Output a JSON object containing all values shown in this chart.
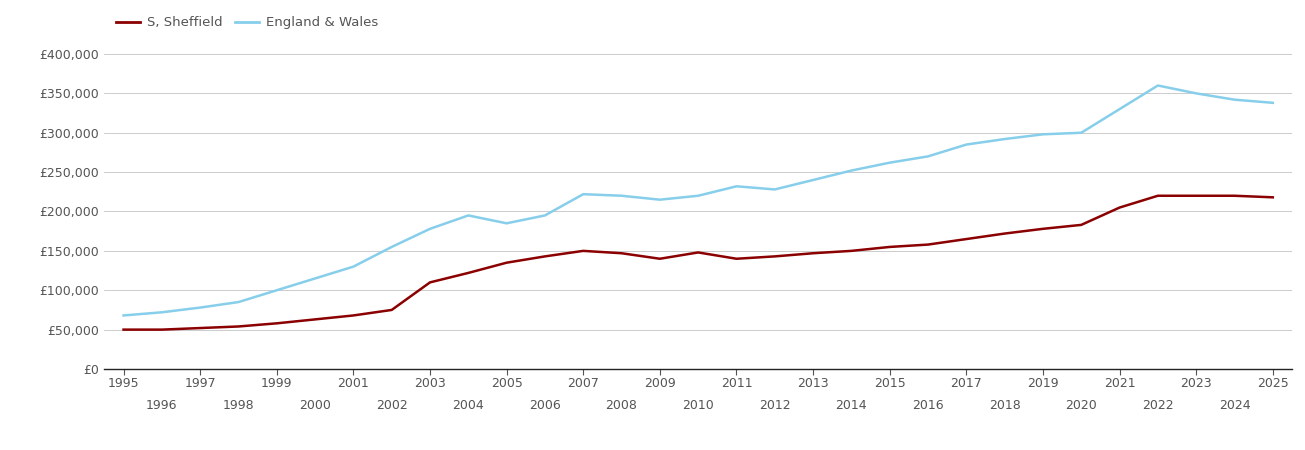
{
  "sheffield": {
    "years": [
      1995,
      1996,
      1997,
      1998,
      1999,
      2000,
      2001,
      2002,
      2003,
      2004,
      2005,
      2006,
      2007,
      2008,
      2009,
      2010,
      2011,
      2012,
      2013,
      2014,
      2015,
      2016,
      2017,
      2018,
      2019,
      2020,
      2021,
      2022,
      2023,
      2024,
      2025
    ],
    "values": [
      50000,
      50000,
      52000,
      54000,
      58000,
      63000,
      68000,
      75000,
      110000,
      122000,
      135000,
      143000,
      150000,
      147000,
      140000,
      148000,
      140000,
      143000,
      147000,
      150000,
      155000,
      158000,
      165000,
      172000,
      178000,
      183000,
      205000,
      220000,
      220000,
      220000,
      218000
    ]
  },
  "england_wales": {
    "years": [
      1995,
      1996,
      1997,
      1998,
      1999,
      2000,
      2001,
      2002,
      2003,
      2004,
      2005,
      2006,
      2007,
      2008,
      2009,
      2010,
      2011,
      2012,
      2013,
      2014,
      2015,
      2016,
      2017,
      2018,
      2019,
      2020,
      2021,
      2022,
      2023,
      2024,
      2025
    ],
    "values": [
      68000,
      72000,
      78000,
      85000,
      100000,
      115000,
      130000,
      155000,
      178000,
      195000,
      185000,
      195000,
      222000,
      220000,
      215000,
      220000,
      232000,
      228000,
      240000,
      252000,
      262000,
      270000,
      285000,
      292000,
      298000,
      300000,
      330000,
      360000,
      350000,
      342000,
      338000
    ]
  },
  "sheffield_color": "#8B0000",
  "england_wales_color": "#87CEEB",
  "sheffield_label": "S, Sheffield",
  "england_wales_label": "England & Wales",
  "ylim": [
    0,
    400000
  ],
  "yticks": [
    0,
    50000,
    100000,
    150000,
    200000,
    250000,
    300000,
    350000,
    400000
  ],
  "ytick_labels": [
    "£0",
    "£50,000",
    "£100,000",
    "£150,000",
    "£200,000",
    "£250,000",
    "£300,000",
    "£350,000",
    "£400,000"
  ],
  "odd_years": [
    1995,
    1997,
    1999,
    2001,
    2003,
    2005,
    2007,
    2009,
    2011,
    2013,
    2015,
    2017,
    2019,
    2021,
    2023,
    2025
  ],
  "even_years": [
    1996,
    1998,
    2000,
    2002,
    2004,
    2006,
    2008,
    2010,
    2012,
    2014,
    2016,
    2018,
    2020,
    2022,
    2024
  ],
  "xlim": [
    1994.5,
    2025.5
  ],
  "background_color": "#ffffff",
  "grid_color": "#cccccc",
  "line_width": 1.8,
  "tick_color": "#555555",
  "tick_fontsize": 9
}
